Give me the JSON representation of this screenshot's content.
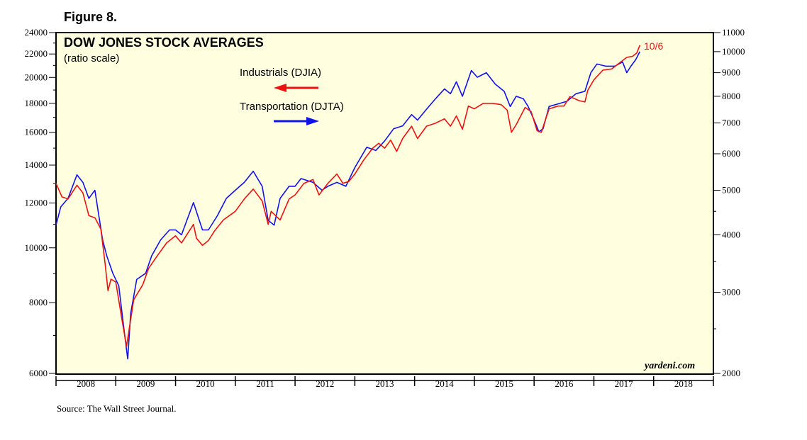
{
  "figure_label": "Figure 8.",
  "source": "Source: The Wall Street Journal.",
  "watermark": "yardeni.com",
  "colors": {
    "plot_bg": "#ffffe0",
    "industrials": "#ee1111",
    "transportation": "#1111ee",
    "axis": "#000000"
  },
  "chart_data": {
    "type": "line",
    "title": "DOW JONES STOCK AVERAGES",
    "subtitle": "(ratio scale)",
    "annotation": "10/6",
    "scale": "log",
    "x_range": [
      2008.0,
      2019.0
    ],
    "x_tick_labels": [
      "2008",
      "2009",
      "2010",
      "2011",
      "2012",
      "2013",
      "2014",
      "2015",
      "2016",
      "2017",
      "2018"
    ],
    "y_left": {
      "range": [
        6000,
        24000
      ],
      "tick_labels": [
        "6000",
        "8000",
        "10000",
        "12000",
        "14000",
        "16000",
        "18000",
        "20000",
        "22000",
        "24000"
      ],
      "ticks": [
        6000,
        8000,
        10000,
        12000,
        14000,
        16000,
        18000,
        20000,
        22000,
        24000
      ]
    },
    "y_right": {
      "range": [
        2000,
        11000
      ],
      "tick_labels": [
        "2000",
        "3000",
        "4000",
        "5000",
        "6000",
        "7000",
        "8000",
        "9000",
        "10000",
        "11000"
      ],
      "ticks": [
        2000,
        3000,
        4000,
        5000,
        6000,
        7000,
        8000,
        9000,
        10000,
        11000
      ]
    },
    "series": [
      {
        "name": "Industrials (DJIA)",
        "axis": "left",
        "arrow": "left",
        "points": [
          [
            2008.0,
            13000
          ],
          [
            2008.1,
            12300
          ],
          [
            2008.2,
            12200
          ],
          [
            2008.35,
            12900
          ],
          [
            2008.45,
            12500
          ],
          [
            2008.55,
            11400
          ],
          [
            2008.65,
            11300
          ],
          [
            2008.75,
            10800
          ],
          [
            2008.82,
            9400
          ],
          [
            2008.87,
            8400
          ],
          [
            2008.92,
            8800
          ],
          [
            2009.0,
            8700
          ],
          [
            2009.1,
            7500
          ],
          [
            2009.18,
            6700
          ],
          [
            2009.3,
            8100
          ],
          [
            2009.45,
            8600
          ],
          [
            2009.55,
            9200
          ],
          [
            2009.7,
            9700
          ],
          [
            2009.85,
            10200
          ],
          [
            2010.0,
            10500
          ],
          [
            2010.1,
            10200
          ],
          [
            2010.3,
            11000
          ],
          [
            2010.35,
            10400
          ],
          [
            2010.45,
            10100
          ],
          [
            2010.55,
            10300
          ],
          [
            2010.65,
            10700
          ],
          [
            2010.8,
            11200
          ],
          [
            2011.0,
            11600
          ],
          [
            2011.15,
            12200
          ],
          [
            2011.3,
            12700
          ],
          [
            2011.45,
            12100
          ],
          [
            2011.55,
            11000
          ],
          [
            2011.6,
            11600
          ],
          [
            2011.75,
            11200
          ],
          [
            2011.9,
            12200
          ],
          [
            2012.0,
            12400
          ],
          [
            2012.15,
            13000
          ],
          [
            2012.3,
            13200
          ],
          [
            2012.4,
            12400
          ],
          [
            2012.55,
            13000
          ],
          [
            2012.7,
            13500
          ],
          [
            2012.8,
            13000
          ],
          [
            2012.9,
            13100
          ],
          [
            2013.0,
            13500
          ],
          [
            2013.15,
            14300
          ],
          [
            2013.3,
            15000
          ],
          [
            2013.4,
            15300
          ],
          [
            2013.5,
            15000
          ],
          [
            2013.6,
            15500
          ],
          [
            2013.7,
            14800
          ],
          [
            2013.8,
            15600
          ],
          [
            2013.95,
            16400
          ],
          [
            2014.05,
            15600
          ],
          [
            2014.2,
            16400
          ],
          [
            2014.35,
            16600
          ],
          [
            2014.5,
            16900
          ],
          [
            2014.6,
            16400
          ],
          [
            2014.7,
            17100
          ],
          [
            2014.8,
            16200
          ],
          [
            2014.9,
            17800
          ],
          [
            2015.0,
            17600
          ],
          [
            2015.15,
            18000
          ],
          [
            2015.3,
            18000
          ],
          [
            2015.45,
            17900
          ],
          [
            2015.55,
            17500
          ],
          [
            2015.62,
            16000
          ],
          [
            2015.7,
            16500
          ],
          [
            2015.85,
            17700
          ],
          [
            2015.95,
            17400
          ],
          [
            2016.05,
            16100
          ],
          [
            2016.12,
            16000
          ],
          [
            2016.25,
            17600
          ],
          [
            2016.4,
            17800
          ],
          [
            2016.5,
            17800
          ],
          [
            2016.6,
            18500
          ],
          [
            2016.75,
            18200
          ],
          [
            2016.85,
            18100
          ],
          [
            2016.9,
            19000
          ],
          [
            2017.0,
            19800
          ],
          [
            2017.15,
            20600
          ],
          [
            2017.3,
            20700
          ],
          [
            2017.45,
            21300
          ],
          [
            2017.55,
            21700
          ],
          [
            2017.65,
            21800
          ],
          [
            2017.72,
            22100
          ],
          [
            2017.77,
            22800
          ]
        ]
      },
      {
        "name": "Transportation (DJTA)",
        "axis": "right",
        "arrow": "right",
        "points": [
          [
            2008.0,
            4200
          ],
          [
            2008.08,
            4600
          ],
          [
            2008.2,
            4800
          ],
          [
            2008.35,
            5400
          ],
          [
            2008.45,
            5200
          ],
          [
            2008.55,
            4800
          ],
          [
            2008.65,
            5000
          ],
          [
            2008.78,
            3900
          ],
          [
            2008.85,
            3600
          ],
          [
            2008.95,
            3300
          ],
          [
            2009.05,
            3100
          ],
          [
            2009.12,
            2600
          ],
          [
            2009.2,
            2150
          ],
          [
            2009.25,
            2700
          ],
          [
            2009.35,
            3200
          ],
          [
            2009.5,
            3300
          ],
          [
            2009.6,
            3600
          ],
          [
            2009.75,
            3900
          ],
          [
            2009.9,
            4100
          ],
          [
            2010.0,
            4100
          ],
          [
            2010.1,
            4000
          ],
          [
            2010.3,
            4700
          ],
          [
            2010.45,
            4100
          ],
          [
            2010.55,
            4100
          ],
          [
            2010.7,
            4400
          ],
          [
            2010.85,
            4800
          ],
          [
            2011.0,
            5000
          ],
          [
            2011.15,
            5200
          ],
          [
            2011.3,
            5500
          ],
          [
            2011.45,
            5100
          ],
          [
            2011.55,
            4300
          ],
          [
            2011.65,
            4200
          ],
          [
            2011.75,
            4800
          ],
          [
            2011.9,
            5100
          ],
          [
            2012.0,
            5100
          ],
          [
            2012.1,
            5300
          ],
          [
            2012.3,
            5200
          ],
          [
            2012.45,
            5000
          ],
          [
            2012.55,
            5100
          ],
          [
            2012.7,
            5200
          ],
          [
            2012.85,
            5100
          ],
          [
            2013.0,
            5600
          ],
          [
            2013.2,
            6200
          ],
          [
            2013.35,
            6100
          ],
          [
            2013.5,
            6400
          ],
          [
            2013.65,
            6800
          ],
          [
            2013.8,
            6900
          ],
          [
            2013.95,
            7300
          ],
          [
            2014.05,
            7100
          ],
          [
            2014.2,
            7500
          ],
          [
            2014.35,
            7900
          ],
          [
            2014.5,
            8300
          ],
          [
            2014.6,
            8100
          ],
          [
            2014.7,
            8600
          ],
          [
            2014.8,
            8000
          ],
          [
            2014.95,
            9100
          ],
          [
            2015.05,
            8800
          ],
          [
            2015.2,
            9000
          ],
          [
            2015.35,
            8500
          ],
          [
            2015.5,
            8200
          ],
          [
            2015.6,
            7600
          ],
          [
            2015.7,
            8000
          ],
          [
            2015.82,
            7900
          ],
          [
            2015.9,
            7600
          ],
          [
            2016.0,
            7100
          ],
          [
            2016.08,
            6700
          ],
          [
            2016.15,
            6800
          ],
          [
            2016.25,
            7600
          ],
          [
            2016.4,
            7700
          ],
          [
            2016.55,
            7800
          ],
          [
            2016.7,
            8100
          ],
          [
            2016.85,
            8200
          ],
          [
            2016.95,
            9000
          ],
          [
            2017.05,
            9400
          ],
          [
            2017.2,
            9300
          ],
          [
            2017.35,
            9300
          ],
          [
            2017.48,
            9500
          ],
          [
            2017.55,
            9000
          ],
          [
            2017.62,
            9300
          ],
          [
            2017.7,
            9600
          ],
          [
            2017.77,
            10000
          ]
        ]
      }
    ]
  }
}
